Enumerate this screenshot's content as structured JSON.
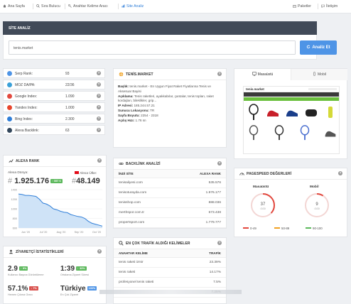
{
  "nav": {
    "home": "Ana Sayfa",
    "rank_query": "Sıra Bulucu",
    "keyword_tool": "Anahtar Kelime Aracı",
    "site_analysis": "Site Analiz",
    "packages": "Paketler",
    "contact": "İletişim"
  },
  "site_analysis": {
    "title": "SİTE ANALİZ",
    "url_value": "tenis.market",
    "button": "Analiz Et"
  },
  "metrics": [
    {
      "label": "Serp Rank:",
      "value": "93",
      "color": "#4e94e6"
    },
    {
      "label": "MOZ DA/PA:",
      "value": "22/36",
      "color": "#3aa0d8"
    },
    {
      "label": "Google Index:",
      "value": "1.090",
      "color": "#e2483e"
    },
    {
      "label": "Yandex Index:",
      "value": "1.000",
      "color": "#e8452c"
    },
    {
      "label": "Bing Index:",
      "value": "2.300",
      "color": "#2f7ed8"
    },
    {
      "label": "Alexa Backlink:",
      "value": "63",
      "color": "#33475b"
    }
  ],
  "alexa": {
    "title": "ALEXA RANK",
    "world_label": "Alexa Dünya:",
    "world_value": "1.925.176",
    "world_change": "↑ 557 6",
    "local_label": "Alexa Ülke:",
    "local_value": "48.149",
    "local_change": "↑",
    "y_ticks": [
      "600",
      "800",
      "1000",
      "1200",
      "1400"
    ],
    "x_ticks": [
      "Jun '20",
      "Jul '20",
      "Aug '20",
      "Sep '20",
      "Oct '20"
    ],
    "series": [
      1.31,
      1.3,
      1.28,
      1.28,
      1.27,
      1.26,
      1.2,
      1.12,
      1.1,
      1.06,
      1.0,
      0.98,
      0.95,
      0.93,
      0.92,
      0.88,
      0.86,
      0.84,
      0.83,
      0.8,
      0.74,
      0.7,
      0.68,
      0.66,
      0.64
    ]
  },
  "visitor_stats": {
    "title": "ZİYARETÇİ İSTATİSTİKLERİ",
    "items": [
      {
        "value": "2.9",
        "badge": "↑ 9%",
        "badge_color": "g",
        "caption": "Kullanıcı Başına Görüntüleme"
      },
      {
        "value": "1:39",
        "badge": "↑ 33%",
        "badge_color": "g",
        "caption": "Ortalama Ziyaret Süresi"
      },
      {
        "value": "57.1%",
        "badge": "↓ 7%",
        "badge_color": "r",
        "caption": "Hemen Çıkma Oranı"
      },
      {
        "value": "Türkiye",
        "badge": "100%",
        "badge_color": "b",
        "caption": "En Çok Ziyaret"
      }
    ]
  },
  "site_info": {
    "title": "TENİS.MARKET",
    "rows": [
      {
        "label": "Başlık:",
        "value": "tenis.market - En Uygun Fiyat Raket Fiyatlarına Tenis ve Aksesuar Bayisi"
      },
      {
        "label": "Açıklama:",
        "value": "Tenis raketleri, ayakkabılar, çantalar, tenis topları, raket kordajları, bileklikler, grip..."
      },
      {
        "label": "IP Adresi:",
        "value": "185.244.57.21"
      },
      {
        "label": "Sunucu Lokasyonu:",
        "value": "TR"
      },
      {
        "label": "Sayfa Boyutu:",
        "value": "2254 - 2318"
      },
      {
        "label": "Açılış Hızı:",
        "value": "1.76 sn"
      }
    ]
  },
  "preview": {
    "tab_desktop": "Masaüstü",
    "tab_mobile": "Mobil",
    "brand": "tenis.market"
  },
  "backlinks": {
    "title": "BACKLİNK ANALİZİ",
    "col_site": "İNDİ SİTE",
    "col_rank": "ALEXA RANK",
    "rows": [
      {
        "site": "tenisaliyesi.com",
        "rank": "535.576"
      },
      {
        "site": "tenisoturayda.com",
        "rank": "1.976.177"
      },
      {
        "site": "tenisshop.com",
        "rank": "888.036"
      },
      {
        "site": "merthspor.com.tr",
        "rank": "673.438"
      },
      {
        "site": "propertsport.com",
        "rank": "1.779.777"
      }
    ]
  },
  "keywords": {
    "title": "EN ÇOK TRAFİK ALDIĞI KELİMELER",
    "col_kw": "ANAHTAR KELİME",
    "col_traffic": "TRAFİK",
    "rows": [
      {
        "kw": "tenis raketi izmir",
        "traffic": "23.39%"
      },
      {
        "kw": "tenis raketi",
        "traffic": "14.17%"
      },
      {
        "kw": "profesyonel tenis raketi",
        "traffic": "7.5%"
      },
      {
        "kw": "",
        "traffic": "7.25%"
      }
    ]
  },
  "pagespeed": {
    "title": "PAGESPEED DEĞERLERİ",
    "desktop_label": "Masaüstü",
    "mobile_label": "Mobil",
    "desktop_score": "37",
    "desktop_sub": "/100",
    "desktop_fraction": 0.37,
    "mobile_score": "9",
    "mobile_sub": "/100",
    "mobile_fraction": 0.09,
    "legend": [
      {
        "label": "0-49",
        "color": "#e2483e"
      },
      {
        "label": "50-89",
        "color": "#f0a020"
      },
      {
        "label": "90-100",
        "color": "#5cb85c"
      }
    ]
  }
}
